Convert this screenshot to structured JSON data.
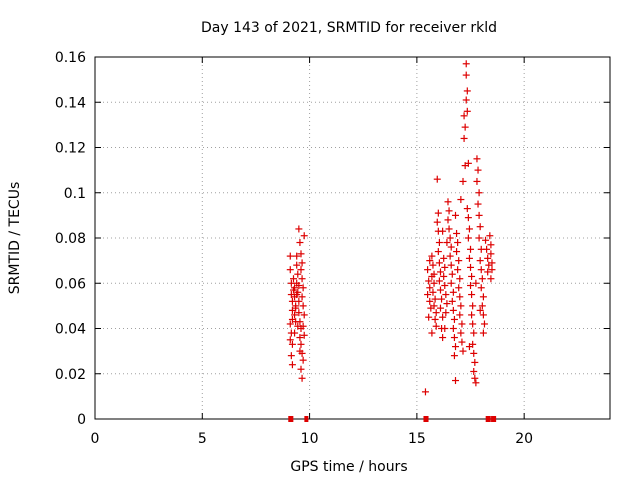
{
  "chart_data": {
    "type": "scatter",
    "title": "Day 143 of 2021, SRMTID for receiver rkld",
    "xlabel": "GPS time / hours",
    "ylabel": "SRMTID / TECUs",
    "xlim": [
      0,
      24
    ],
    "ylim": [
      0,
      0.16
    ],
    "x_ticks": [
      0,
      5,
      10,
      15,
      20
    ],
    "x_tick_labels": [
      "0",
      "5",
      "10",
      "15",
      "20"
    ],
    "y_ticks": [
      0,
      0.02,
      0.04,
      0.06,
      0.08,
      0.1,
      0.12,
      0.14,
      0.16
    ],
    "y_tick_labels": [
      "0",
      "0.02",
      "0.04",
      "0.06",
      "0.08",
      "0.1",
      "0.12",
      "0.14",
      "0.16"
    ],
    "grid": true,
    "marker": "+",
    "color": "#dd0000",
    "series": [
      {
        "name": "SRMTID",
        "points": [
          [
            9.1,
            0.072
          ],
          [
            9.1,
            0.066
          ],
          [
            9.15,
            0.06
          ],
          [
            9.15,
            0.055
          ],
          [
            9.2,
            0.052
          ],
          [
            9.2,
            0.048
          ],
          [
            9.2,
            0.044
          ],
          [
            9.1,
            0.042
          ],
          [
            9.15,
            0.038
          ],
          [
            9.1,
            0.035
          ],
          [
            9.15,
            0.028
          ],
          [
            9.2,
            0.024
          ],
          [
            9.25,
            0.062
          ],
          [
            9.3,
            0.058
          ],
          [
            9.3,
            0.054
          ],
          [
            9.35,
            0.05
          ],
          [
            9.3,
            0.046
          ],
          [
            9.35,
            0.043
          ],
          [
            9.4,
            0.072
          ],
          [
            9.4,
            0.068
          ],
          [
            9.45,
            0.064
          ],
          [
            9.4,
            0.06
          ],
          [
            9.45,
            0.056
          ],
          [
            9.5,
            0.052
          ],
          [
            9.5,
            0.084
          ],
          [
            9.55,
            0.078
          ],
          [
            9.5,
            0.047
          ],
          [
            9.55,
            0.043
          ],
          [
            9.6,
            0.04
          ],
          [
            9.55,
            0.036
          ],
          [
            9.6,
            0.073
          ],
          [
            9.65,
            0.069
          ],
          [
            9.6,
            0.066
          ],
          [
            9.65,
            0.062
          ],
          [
            9.7,
            0.058
          ],
          [
            9.65,
            0.054
          ],
          [
            9.7,
            0.05
          ],
          [
            9.75,
            0.046
          ],
          [
            9.7,
            0.041
          ],
          [
            9.75,
            0.037
          ],
          [
            9.6,
            0.033
          ],
          [
            9.65,
            0.029
          ],
          [
            9.7,
            0.026
          ],
          [
            9.6,
            0.022
          ],
          [
            9.65,
            0.018
          ],
          [
            9.75,
            0.081
          ],
          [
            9.25,
            0.057
          ],
          [
            9.35,
            0.049
          ],
          [
            9.45,
            0.041
          ],
          [
            9.55,
            0.03
          ],
          [
            9.2,
            0.033
          ],
          [
            9.3,
            0.038
          ],
          [
            9.4,
            0.055
          ],
          [
            9.5,
            0.059
          ],
          [
            15.4,
            0.012
          ],
          [
            15.5,
            0.066
          ],
          [
            15.55,
            0.061
          ],
          [
            15.6,
            0.058
          ],
          [
            15.5,
            0.055
          ],
          [
            15.6,
            0.052
          ],
          [
            15.65,
            0.049
          ],
          [
            15.55,
            0.045
          ],
          [
            15.7,
            0.072
          ],
          [
            15.75,
            0.068
          ],
          [
            15.7,
            0.063
          ],
          [
            15.8,
            0.06
          ],
          [
            15.75,
            0.056
          ],
          [
            15.85,
            0.053
          ],
          [
            15.8,
            0.05
          ],
          [
            15.9,
            0.047
          ],
          [
            15.85,
            0.044
          ],
          [
            15.9,
            0.041
          ],
          [
            15.95,
            0.106
          ],
          [
            16.0,
            0.091
          ],
          [
            15.95,
            0.087
          ],
          [
            16.0,
            0.083
          ],
          [
            16.05,
            0.078
          ],
          [
            16.0,
            0.074
          ],
          [
            16.05,
            0.069
          ],
          [
            16.1,
            0.065
          ],
          [
            16.05,
            0.061
          ],
          [
            16.1,
            0.057
          ],
          [
            16.15,
            0.053
          ],
          [
            16.1,
            0.049
          ],
          [
            16.2,
            0.045
          ],
          [
            16.15,
            0.04
          ],
          [
            16.2,
            0.036
          ],
          [
            16.25,
            0.071
          ],
          [
            16.3,
            0.067
          ],
          [
            16.25,
            0.063
          ],
          [
            16.3,
            0.059
          ],
          [
            16.35,
            0.055
          ],
          [
            16.4,
            0.051
          ],
          [
            16.35,
            0.047
          ],
          [
            16.45,
            0.096
          ],
          [
            16.5,
            0.092
          ],
          [
            16.45,
            0.088
          ],
          [
            16.5,
            0.084
          ],
          [
            16.55,
            0.08
          ],
          [
            16.6,
            0.076
          ],
          [
            16.55,
            0.072
          ],
          [
            16.6,
            0.068
          ],
          [
            16.65,
            0.064
          ],
          [
            16.6,
            0.06
          ],
          [
            16.7,
            0.056
          ],
          [
            16.65,
            0.052
          ],
          [
            16.7,
            0.048
          ],
          [
            16.75,
            0.044
          ],
          [
            16.7,
            0.04
          ],
          [
            16.75,
            0.036
          ],
          [
            16.8,
            0.032
          ],
          [
            16.75,
            0.028
          ],
          [
            16.8,
            0.017
          ],
          [
            16.85,
            0.082
          ],
          [
            16.9,
            0.078
          ],
          [
            16.85,
            0.074
          ],
          [
            16.95,
            0.07
          ],
          [
            16.9,
            0.066
          ],
          [
            17.0,
            0.062
          ],
          [
            16.95,
            0.058
          ],
          [
            17.0,
            0.054
          ],
          [
            17.05,
            0.05
          ],
          [
            17.0,
            0.046
          ],
          [
            17.1,
            0.042
          ],
          [
            17.05,
            0.038
          ],
          [
            17.1,
            0.034
          ],
          [
            17.15,
            0.03
          ],
          [
            17.2,
            0.134
          ],
          [
            17.25,
            0.129
          ],
          [
            17.2,
            0.124
          ],
          [
            17.25,
            0.112
          ],
          [
            17.3,
            0.157
          ],
          [
            17.3,
            0.152
          ],
          [
            17.35,
            0.145
          ],
          [
            17.3,
            0.141
          ],
          [
            17.35,
            0.136
          ],
          [
            17.4,
            0.113
          ],
          [
            17.35,
            0.093
          ],
          [
            17.4,
            0.089
          ],
          [
            17.45,
            0.084
          ],
          [
            17.4,
            0.08
          ],
          [
            17.5,
            0.075
          ],
          [
            17.45,
            0.071
          ],
          [
            17.5,
            0.067
          ],
          [
            17.55,
            0.063
          ],
          [
            17.5,
            0.059
          ],
          [
            17.55,
            0.055
          ],
          [
            17.6,
            0.05
          ],
          [
            17.55,
            0.046
          ],
          [
            17.6,
            0.042
          ],
          [
            17.65,
            0.038
          ],
          [
            17.6,
            0.033
          ],
          [
            17.65,
            0.029
          ],
          [
            17.7,
            0.025
          ],
          [
            17.65,
            0.021
          ],
          [
            17.7,
            0.018
          ],
          [
            17.75,
            0.016
          ],
          [
            17.8,
            0.115
          ],
          [
            17.85,
            0.11
          ],
          [
            17.8,
            0.105
          ],
          [
            17.9,
            0.1
          ],
          [
            17.85,
            0.095
          ],
          [
            17.9,
            0.09
          ],
          [
            17.95,
            0.085
          ],
          [
            17.9,
            0.08
          ],
          [
            18.0,
            0.075
          ],
          [
            17.95,
            0.07
          ],
          [
            18.0,
            0.066
          ],
          [
            18.05,
            0.062
          ],
          [
            18.0,
            0.058
          ],
          [
            18.1,
            0.054
          ],
          [
            18.05,
            0.05
          ],
          [
            18.1,
            0.046
          ],
          [
            18.15,
            0.042
          ],
          [
            18.1,
            0.038
          ],
          [
            18.2,
            0.079
          ],
          [
            18.25,
            0.075
          ],
          [
            18.3,
            0.071
          ],
          [
            18.35,
            0.068
          ],
          [
            18.3,
            0.065
          ],
          [
            18.4,
            0.081
          ],
          [
            18.45,
            0.077
          ],
          [
            18.45,
            0.073
          ],
          [
            18.5,
            0.069
          ],
          [
            18.5,
            0.066
          ],
          [
            18.45,
            0.062
          ],
          [
            15.6,
            0.07
          ],
          [
            15.7,
            0.038
          ],
          [
            15.8,
            0.064
          ],
          [
            16.3,
            0.04
          ],
          [
            16.4,
            0.078
          ],
          [
            16.8,
            0.09
          ],
          [
            17.15,
            0.105
          ],
          [
            17.45,
            0.032
          ],
          [
            17.75,
            0.06
          ],
          [
            17.95,
            0.048
          ],
          [
            16.2,
            0.083
          ],
          [
            17.05,
            0.097
          ]
        ]
      }
    ],
    "axis_markers": {
      "y": 0,
      "x": [
        9.1,
        9.15,
        9.85,
        15.4,
        15.45,
        18.3,
        18.35,
        18.55,
        18.6
      ]
    }
  }
}
